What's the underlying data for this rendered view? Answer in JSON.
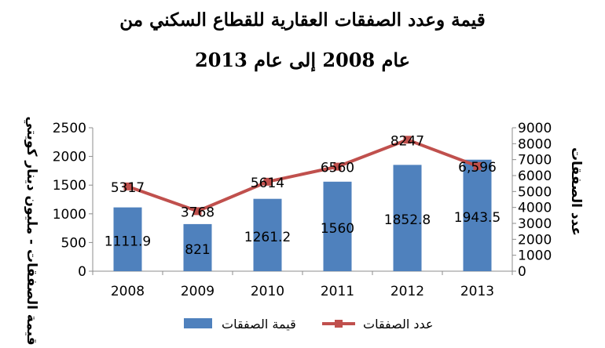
{
  "chart_data": {
    "type": "bar",
    "title_lines": [
      "قيمة وعدد الصفقات العقارية للقطاع السكني من",
      "عام 2008 إلى عام 2013"
    ],
    "categories": [
      "2008",
      "2009",
      "2010",
      "2011",
      "2012",
      "2013"
    ],
    "y_left": {
      "label": "قيمة الصفقات - مليون دينار كويتي",
      "range": [
        0,
        2500
      ],
      "ticks": [
        "0",
        "500",
        "1000",
        "1500",
        "2000",
        "2500"
      ]
    },
    "y_right": {
      "label": "عدد الصفقات",
      "range": [
        0,
        9000
      ],
      "ticks": [
        "0",
        "1000",
        "2000",
        "3000",
        "4000",
        "5000",
        "6000",
        "7000",
        "8000",
        "9000"
      ]
    },
    "series": [
      {
        "name": "قيمة الصفقات",
        "kind": "bar",
        "axis": "left",
        "color": "#4F81BD",
        "values": [
          1111.9,
          821,
          1261.2,
          1560,
          1852.8,
          1943.5
        ],
        "labels": [
          "1111.9",
          "821",
          "1261.2",
          "1560",
          "1852.8",
          "1943.5"
        ]
      },
      {
        "name": "عدد الصفقات",
        "kind": "line",
        "axis": "right",
        "color": "#C0504D",
        "values": [
          5317,
          3768,
          5614,
          6560,
          8247,
          6596
        ],
        "labels": [
          "5317",
          "3768",
          "5614",
          "6560",
          "8247",
          "6,596"
        ]
      }
    ],
    "grid": false,
    "legend_position": "bottom"
  }
}
